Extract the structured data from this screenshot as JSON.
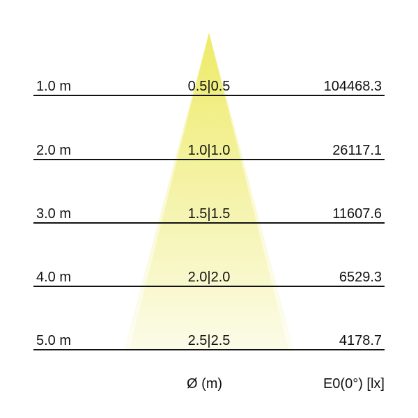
{
  "colors": {
    "beam_top": "#ece95a",
    "beam_bottom": "#fbfbe6",
    "lines": "#111111"
  },
  "rows": [
    {
      "distance": "1.0 m",
      "diameter": "0.5|0.5",
      "illuminance": "104468.3"
    },
    {
      "distance": "2.0 m",
      "diameter": "1.0|1.0",
      "illuminance": "26117.1"
    },
    {
      "distance": "3.0 m",
      "diameter": "1.5|1.5",
      "illuminance": "11607.6"
    },
    {
      "distance": "4.0 m",
      "diameter": "2.0|2.0",
      "illuminance": "6529.3"
    },
    {
      "distance": "5.0 m",
      "diameter": "2.5|2.5",
      "illuminance": "4178.7"
    }
  ],
  "footer": {
    "diameter_label": "Ø (m)",
    "illuminance_label": "E0(0°) [lx]"
  }
}
